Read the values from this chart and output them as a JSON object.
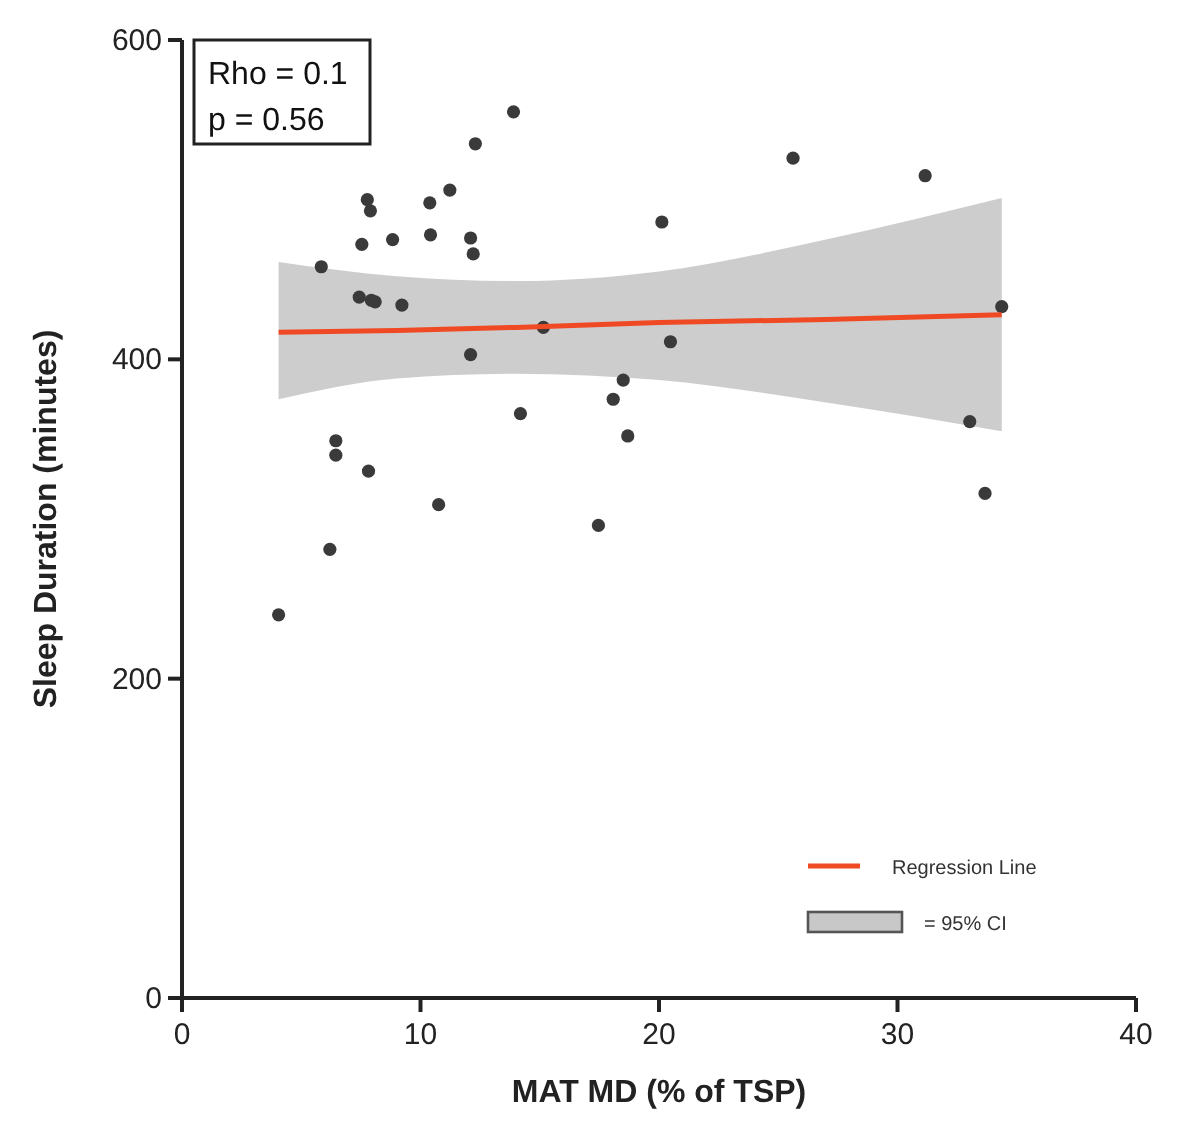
{
  "chart_data": {
    "type": "scatter",
    "xlabel": "MAT MD (% of TSP)",
    "ylabel": "Sleep Duration (minutes)",
    "xlim": [
      0,
      40
    ],
    "xticks": [
      0,
      10,
      20,
      30,
      40
    ],
    "ylim": [
      0,
      600
    ],
    "yticks": [
      0,
      200,
      400,
      600
    ],
    "grid": false,
    "legend": "bottom right",
    "marker": "circle",
    "annotations": [
      "Rho = 0.1",
      "p = 0.56",
      "= 95% CI"
    ],
    "series": [
      {
        "color": "#3a3a3a",
        "x": [
          4.05,
          6.2,
          6.45,
          6.45,
          5.84,
          7.43,
          7.54,
          7.77,
          7.82,
          7.9,
          7.94,
          8.1,
          8.83,
          9.22,
          10.39,
          10.42,
          10.76,
          11.23,
          12.1,
          12.1,
          12.21,
          12.3,
          13.9,
          14.19,
          15.15,
          17.46,
          18.08,
          18.5,
          18.69,
          20.12,
          20.48,
          25.62,
          31.16,
          33.03,
          33.67,
          34.37
        ],
        "values": [
          240,
          281,
          349,
          340,
          458,
          439,
          472,
          500,
          330,
          493,
          437,
          436,
          475,
          434,
          498,
          478,
          309,
          506,
          476,
          403,
          466,
          535,
          555,
          366,
          420,
          296,
          375,
          387,
          352,
          486,
          411,
          526,
          515,
          361,
          316,
          433
        ]
      },
      {
        "type": "line",
        "name": "Regression Line",
        "color": "#f04a24",
        "line_style": "solid",
        "marker": "none",
        "x": [
          4.05,
          9,
          14,
          20,
          27,
          34.37
        ],
        "values": [
          417,
          418,
          420,
          423,
          425,
          428
        ],
        "lower": [
          375,
          388,
          391,
          387,
          373,
          355
        ],
        "upper": [
          461,
          452,
          449,
          455,
          475,
          501
        ]
      }
    ]
  }
}
